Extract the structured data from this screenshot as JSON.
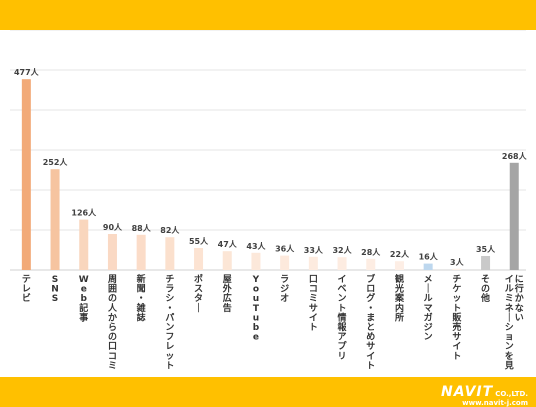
{
  "brand": {
    "name": "NAVIT",
    "company": "CO.,LTD.",
    "url": "www.navit-j.com"
  },
  "chart_data": {
    "type": "bar",
    "title": "",
    "xlabel": "",
    "ylabel": "",
    "unit": "人",
    "ylim": [
      0,
      600
    ],
    "grid": true,
    "categories": [
      "テレビ",
      "SNS",
      "Web記事",
      "周囲の人からの口コミ",
      "新聞・雑誌",
      "チラシ・パンフレット",
      "ポスター",
      "屋外広告",
      "YouTube",
      "ラジオ",
      "口コミサイト",
      "イベント情報アプリ",
      "ブログ・まとめサイト",
      "観光案内所",
      "メールマガジン",
      "チケット販売サイト",
      "その他",
      "イルミネーションを見に行かない"
    ],
    "values": [
      477,
      252,
      126,
      90,
      88,
      82,
      55,
      47,
      43,
      36,
      33,
      32,
      28,
      22,
      16,
      3,
      35,
      268
    ],
    "data_labels": [
      "477人",
      "252人",
      "126人",
      "90人",
      "88人",
      "82人",
      "55人",
      "47人",
      "43人",
      "36人",
      "33人",
      "32人",
      "28人",
      "22人",
      "16人",
      "3人",
      "35人",
      "268人"
    ],
    "colors": [
      "#f2aa78",
      "#f6c4a0",
      "#f9d6bd",
      "#fad9c4",
      "#fbdcc8",
      "#fbe0cd",
      "#fce3d2",
      "#fce6d6",
      "#fce8da",
      "#fde9dc",
      "#fdebdf",
      "#fdece1",
      "#fdede3",
      "#fdeee5",
      "#bdd7ee",
      "#fdf0e8",
      "#c9c9c9",
      "#a5a5a5"
    ]
  }
}
